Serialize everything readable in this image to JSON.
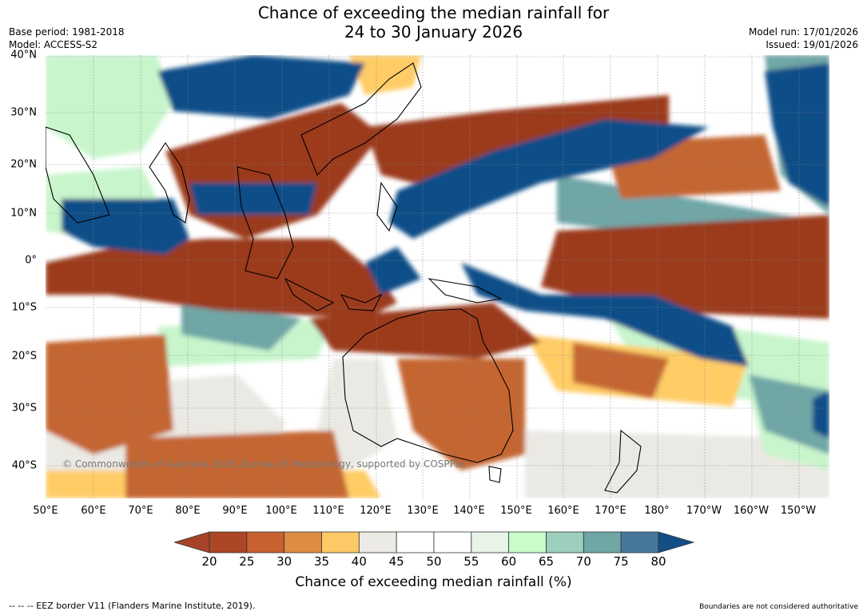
{
  "title": {
    "line1": "Chance of exceeding the median rainfall for",
    "line2": "24 to 30 January 2026"
  },
  "meta_left": {
    "base_period": "Base period: 1981-2018",
    "model": "Model: ACCESS-S2"
  },
  "meta_right": {
    "model_run": "Model run: 17/01/2026",
    "issued": "Issued: 19/01/2026"
  },
  "map": {
    "lat_labels": [
      "40°N",
      "30°N",
      "20°N",
      "10°N",
      "0°",
      "10°S",
      "20°S",
      "30°S",
      "40°S"
    ],
    "lon_labels": [
      "50°E",
      "60°E",
      "70°E",
      "80°E",
      "90°E",
      "100°E",
      "110°E",
      "120°E",
      "130°E",
      "140°E",
      "150°E",
      "160°E",
      "170°E",
      "180°",
      "170°W",
      "160°W",
      "150°W"
    ],
    "copyright": "© Commonwealth of Australia 2026, Bureau of Meteorology, supported by COSPPac",
    "categories": {
      "very_dry": "#9b3a1f",
      "dry": "#c46632",
      "slightly_dry": "#ffcc66",
      "neutral": "#ebe9e3",
      "slightly_wet": "#c8f5cc",
      "wet": "#6fa6a6",
      "very_wet": "#114e88"
    }
  },
  "colorbar": {
    "ticks": [
      "20",
      "25",
      "30",
      "35",
      "40",
      "45",
      "50",
      "55",
      "60",
      "65",
      "70",
      "75",
      "80"
    ],
    "colors": [
      "#ac4626",
      "#c9602f",
      "#de8c43",
      "#fdc966",
      "#eceae4",
      "#ffffff",
      "#ffffff",
      "#e8f4e8",
      "#c8fdcb",
      "#9ccfbc",
      "#6fa6a6",
      "#47789c"
    ],
    "under_color": "#a8432a",
    "over_color": "#134e86",
    "label": "Chance of exceeding median rainfall (%)"
  },
  "footer": {
    "left": "--  --  -- EEZ border V11 (Flanders Marine Institute, 2019).",
    "right": "Boundaries are not considered authoritative"
  }
}
